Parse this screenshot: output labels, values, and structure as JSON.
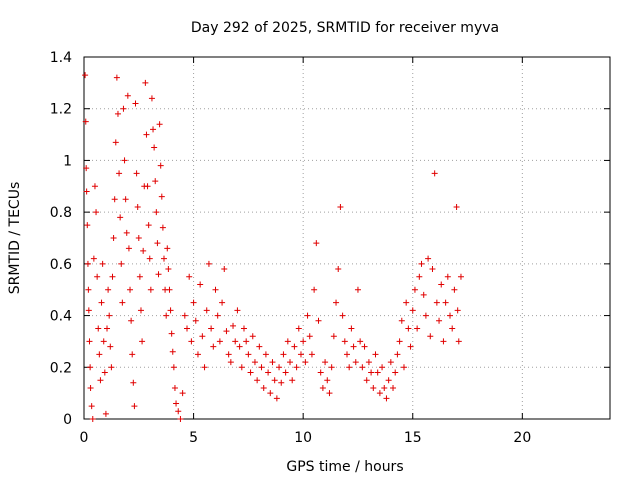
{
  "chart_data": {
    "type": "scatter",
    "title": "Day 292 of 2025, SRMTID for receiver myva",
    "xlabel": "GPS time / hours",
    "ylabel": "SRMTID / TECUs",
    "xlim": [
      0,
      24
    ],
    "ylim": [
      0,
      1.4
    ],
    "xticks": [
      0,
      5,
      10,
      15,
      20
    ],
    "yticks": [
      0,
      0.2,
      0.4,
      0.6,
      0.8,
      1,
      1.2,
      1.4
    ],
    "xtick_labels": [
      "0",
      "5",
      "10",
      "15",
      "20"
    ],
    "ytick_labels": [
      "0",
      "0.2",
      "0.4",
      "0.6",
      "0.8",
      "1",
      "1.2",
      "1.4"
    ],
    "grid": true,
    "marker": "+",
    "color": "#e00000",
    "series": [
      {
        "name": "SRMTID",
        "points": [
          [
            0.05,
            1.33
          ],
          [
            0.08,
            1.15
          ],
          [
            0.1,
            0.97
          ],
          [
            0.12,
            0.88
          ],
          [
            0.15,
            0.75
          ],
          [
            0.18,
            0.6
          ],
          [
            0.2,
            0.5
          ],
          [
            0.22,
            0.42
          ],
          [
            0.25,
            0.3
          ],
          [
            0.28,
            0.2
          ],
          [
            0.3,
            0.12
          ],
          [
            0.35,
            0.05
          ],
          [
            0.4,
            0.0
          ],
          [
            0.45,
            0.62
          ],
          [
            0.5,
            0.9
          ],
          [
            0.55,
            0.8
          ],
          [
            0.6,
            0.55
          ],
          [
            0.65,
            0.35
          ],
          [
            0.7,
            0.25
          ],
          [
            0.75,
            0.15
          ],
          [
            0.8,
            0.45
          ],
          [
            0.85,
            0.6
          ],
          [
            0.9,
            0.3
          ],
          [
            0.95,
            0.18
          ],
          [
            1.0,
            0.02
          ],
          [
            1.05,
            0.35
          ],
          [
            1.1,
            0.5
          ],
          [
            1.15,
            0.4
          ],
          [
            1.2,
            0.28
          ],
          [
            1.25,
            0.2
          ],
          [
            1.3,
            0.55
          ],
          [
            1.35,
            0.7
          ],
          [
            1.4,
            0.85
          ],
          [
            1.45,
            1.07
          ],
          [
            1.5,
            1.32
          ],
          [
            1.55,
            1.18
          ],
          [
            1.6,
            0.95
          ],
          [
            1.65,
            0.78
          ],
          [
            1.7,
            0.6
          ],
          [
            1.75,
            0.45
          ],
          [
            1.8,
            1.2
          ],
          [
            1.85,
            1.0
          ],
          [
            1.9,
            0.85
          ],
          [
            1.95,
            0.72
          ],
          [
            2.0,
            1.25
          ],
          [
            2.05,
            0.66
          ],
          [
            2.1,
            0.5
          ],
          [
            2.15,
            0.38
          ],
          [
            2.2,
            0.25
          ],
          [
            2.25,
            0.14
          ],
          [
            2.3,
            0.05
          ],
          [
            2.35,
            1.22
          ],
          [
            2.4,
            0.95
          ],
          [
            2.45,
            0.82
          ],
          [
            2.5,
            0.7
          ],
          [
            2.55,
            0.55
          ],
          [
            2.6,
            0.42
          ],
          [
            2.65,
            0.3
          ],
          [
            2.7,
            0.65
          ],
          [
            2.75,
            0.9
          ],
          [
            2.8,
            1.3
          ],
          [
            2.85,
            1.1
          ],
          [
            2.9,
            0.9
          ],
          [
            2.95,
            0.75
          ],
          [
            3.0,
            0.62
          ],
          [
            3.05,
            0.5
          ],
          [
            3.1,
            1.24
          ],
          [
            3.15,
            1.12
          ],
          [
            3.2,
            1.05
          ],
          [
            3.25,
            0.92
          ],
          [
            3.3,
            0.8
          ],
          [
            3.35,
            0.68
          ],
          [
            3.4,
            0.56
          ],
          [
            3.45,
            1.14
          ],
          [
            3.5,
            0.98
          ],
          [
            3.55,
            0.86
          ],
          [
            3.6,
            0.74
          ],
          [
            3.65,
            0.62
          ],
          [
            3.7,
            0.5
          ],
          [
            3.75,
            0.4
          ],
          [
            3.8,
            0.66
          ],
          [
            3.85,
            0.58
          ],
          [
            3.9,
            0.5
          ],
          [
            3.95,
            0.42
          ],
          [
            4.0,
            0.33
          ],
          [
            4.05,
            0.26
          ],
          [
            4.1,
            0.2
          ],
          [
            4.15,
            0.12
          ],
          [
            4.2,
            0.06
          ],
          [
            4.3,
            0.03
          ],
          [
            4.4,
            0.0
          ],
          [
            4.5,
            0.1
          ],
          [
            4.6,
            0.4
          ],
          [
            4.7,
            0.35
          ],
          [
            4.8,
            0.55
          ],
          [
            4.9,
            0.3
          ],
          [
            5.0,
            0.45
          ],
          [
            5.1,
            0.38
          ],
          [
            5.2,
            0.25
          ],
          [
            5.3,
            0.52
          ],
          [
            5.4,
            0.32
          ],
          [
            5.5,
            0.2
          ],
          [
            5.6,
            0.42
          ],
          [
            5.7,
            0.6
          ],
          [
            5.8,
            0.35
          ],
          [
            5.9,
            0.28
          ],
          [
            6.0,
            0.5
          ],
          [
            6.1,
            0.4
          ],
          [
            6.2,
            0.3
          ],
          [
            6.3,
            0.45
          ],
          [
            6.4,
            0.58
          ],
          [
            6.5,
            0.34
          ],
          [
            6.6,
            0.25
          ],
          [
            6.7,
            0.22
          ],
          [
            6.8,
            0.36
          ],
          [
            6.9,
            0.3
          ],
          [
            7.0,
            0.42
          ],
          [
            7.1,
            0.28
          ],
          [
            7.2,
            0.2
          ],
          [
            7.3,
            0.35
          ],
          [
            7.4,
            0.3
          ],
          [
            7.5,
            0.25
          ],
          [
            7.6,
            0.18
          ],
          [
            7.7,
            0.32
          ],
          [
            7.8,
            0.22
          ],
          [
            7.9,
            0.15
          ],
          [
            8.0,
            0.28
          ],
          [
            8.1,
            0.2
          ],
          [
            8.2,
            0.12
          ],
          [
            8.3,
            0.25
          ],
          [
            8.4,
            0.18
          ],
          [
            8.5,
            0.1
          ],
          [
            8.6,
            0.22
          ],
          [
            8.7,
            0.15
          ],
          [
            8.8,
            0.08
          ],
          [
            8.9,
            0.2
          ],
          [
            9.0,
            0.14
          ],
          [
            9.1,
            0.25
          ],
          [
            9.2,
            0.18
          ],
          [
            9.3,
            0.3
          ],
          [
            9.4,
            0.22
          ],
          [
            9.5,
            0.15
          ],
          [
            9.6,
            0.28
          ],
          [
            9.7,
            0.2
          ],
          [
            9.8,
            0.35
          ],
          [
            9.9,
            0.25
          ],
          [
            10.0,
            0.3
          ],
          [
            10.1,
            0.22
          ],
          [
            10.2,
            0.4
          ],
          [
            10.3,
            0.32
          ],
          [
            10.4,
            0.25
          ],
          [
            10.5,
            0.5
          ],
          [
            10.6,
            0.68
          ],
          [
            10.7,
            0.38
          ],
          [
            10.8,
            0.18
          ],
          [
            10.9,
            0.12
          ],
          [
            11.0,
            0.22
          ],
          [
            11.1,
            0.15
          ],
          [
            11.2,
            0.1
          ],
          [
            11.3,
            0.2
          ],
          [
            11.4,
            0.32
          ],
          [
            11.5,
            0.45
          ],
          [
            11.6,
            0.58
          ],
          [
            11.7,
            0.82
          ],
          [
            11.8,
            0.4
          ],
          [
            11.9,
            0.3
          ],
          [
            12.0,
            0.25
          ],
          [
            12.1,
            0.2
          ],
          [
            12.2,
            0.35
          ],
          [
            12.3,
            0.28
          ],
          [
            12.4,
            0.22
          ],
          [
            12.5,
            0.5
          ],
          [
            12.6,
            0.3
          ],
          [
            12.7,
            0.2
          ],
          [
            12.8,
            0.28
          ],
          [
            12.9,
            0.15
          ],
          [
            13.0,
            0.22
          ],
          [
            13.1,
            0.18
          ],
          [
            13.2,
            0.12
          ],
          [
            13.3,
            0.25
          ],
          [
            13.4,
            0.18
          ],
          [
            13.5,
            0.1
          ],
          [
            13.6,
            0.2
          ],
          [
            13.7,
            0.12
          ],
          [
            13.8,
            0.08
          ],
          [
            13.9,
            0.15
          ],
          [
            14.0,
            0.22
          ],
          [
            14.1,
            0.12
          ],
          [
            14.2,
            0.18
          ],
          [
            14.3,
            0.25
          ],
          [
            14.4,
            0.3
          ],
          [
            14.5,
            0.38
          ],
          [
            14.6,
            0.2
          ],
          [
            14.7,
            0.45
          ],
          [
            14.8,
            0.35
          ],
          [
            14.9,
            0.28
          ],
          [
            15.0,
            0.42
          ],
          [
            15.1,
            0.5
          ],
          [
            15.2,
            0.35
          ],
          [
            15.3,
            0.55
          ],
          [
            15.4,
            0.6
          ],
          [
            15.5,
            0.48
          ],
          [
            15.6,
            0.4
          ],
          [
            15.7,
            0.62
          ],
          [
            15.8,
            0.32
          ],
          [
            15.9,
            0.58
          ],
          [
            16.0,
            0.95
          ],
          [
            16.1,
            0.45
          ],
          [
            16.2,
            0.38
          ],
          [
            16.3,
            0.52
          ],
          [
            16.4,
            0.3
          ],
          [
            16.5,
            0.45
          ],
          [
            16.6,
            0.55
          ],
          [
            16.7,
            0.4
          ],
          [
            16.8,
            0.35
          ],
          [
            16.9,
            0.5
          ],
          [
            17.0,
            0.82
          ],
          [
            17.05,
            0.42
          ],
          [
            17.1,
            0.3
          ],
          [
            17.2,
            0.55
          ]
        ]
      }
    ]
  }
}
